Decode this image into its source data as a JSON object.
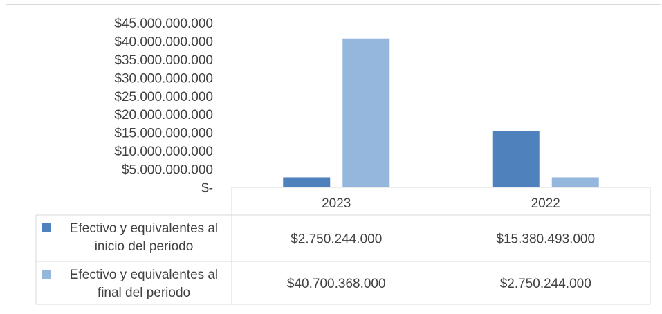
{
  "chart_data": {
    "type": "bar",
    "categories": [
      "2023",
      "2022"
    ],
    "series": [
      {
        "name_lines": [
          "Efectivo y equivalentes al",
          "inicio del periodo"
        ],
        "values": [
          2750244000,
          15380493000
        ],
        "labels": [
          "$2.750.244.000",
          "$15.380.493.000"
        ],
        "color": "#4f81bd"
      },
      {
        "name_lines": [
          "Efectivo y equivalentes al",
          "final del periodo"
        ],
        "values": [
          40700368000,
          2750244000
        ],
        "labels": [
          "$40.700.368.000",
          "$2.750.244.000"
        ],
        "color": "#95b7de"
      }
    ],
    "yticks": [
      {
        "value": 0,
        "label": "$-"
      },
      {
        "value": 5000000000,
        "label": "$5.000.000.000"
      },
      {
        "value": 10000000000,
        "label": "$10.000.000.000"
      },
      {
        "value": 15000000000,
        "label": "$15.000.000.000"
      },
      {
        "value": 20000000000,
        "label": "$20.000.000.000"
      },
      {
        "value": 25000000000,
        "label": "$25.000.000.000"
      },
      {
        "value": 30000000000,
        "label": "$30.000.000.000"
      },
      {
        "value": 35000000000,
        "label": "$35.000.000.000"
      },
      {
        "value": 40000000000,
        "label": "$40.000.000.000"
      },
      {
        "value": 45000000000,
        "label": "$45.000.000.000"
      }
    ],
    "ylim": [
      0,
      45000000000
    ],
    "grid": false,
    "legend": "data-table"
  }
}
